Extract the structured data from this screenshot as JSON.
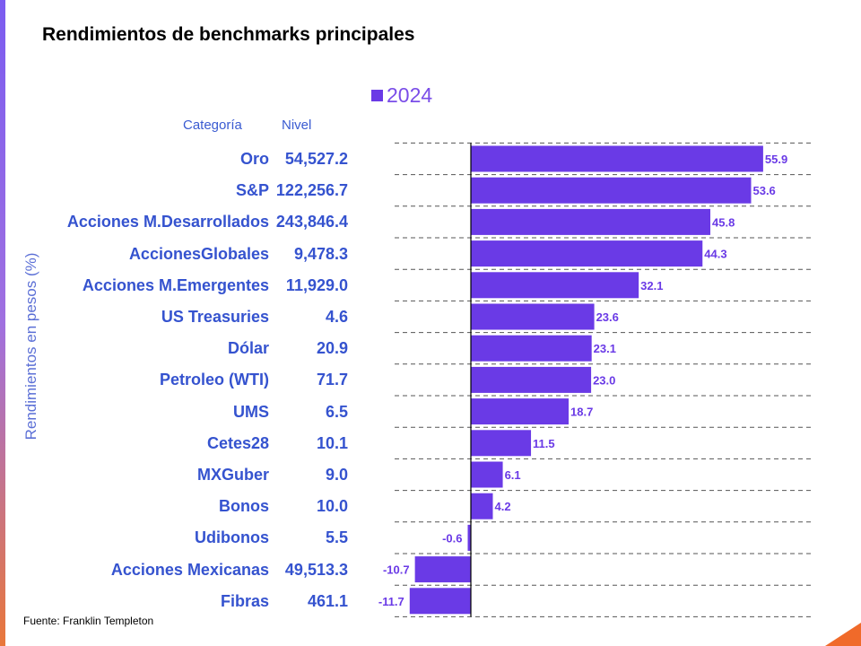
{
  "title": "Rendimientos de benchmarks principales",
  "source": "Fuente: Franklin Templeton",
  "table_headers": {
    "category": "Categoría",
    "level": "Nivel"
  },
  "chart_data": {
    "type": "bar",
    "orientation": "horizontal",
    "ylabel": "Rendimientos en pesos (%)",
    "grid": "horizontal dashed",
    "legend_placement": "top",
    "bar_color": "#6a3ae6",
    "label_color": "#6a3ae6",
    "categories": [
      "Oro",
      "S&P",
      "Acciones M.Desarrollados",
      "AccionesGlobales",
      "Acciones M.Emergentes",
      "US Treasuries",
      "Dólar",
      "Petroleo (WTI)",
      "UMS",
      "Cetes28",
      "MXGuber",
      "Bonos",
      "Udibonos",
      "Acciones Mexicanas",
      "Fibras"
    ],
    "levels": [
      "54,527.2",
      "122,256.7",
      "243,846.4",
      "9,478.3",
      "11,929.0",
      "4.6",
      "20.9",
      "71.7",
      "6.5",
      "10.1",
      "9.0",
      "10.0",
      "5.5",
      "49,513.3",
      "461.1"
    ],
    "series": [
      {
        "name": "2024",
        "values": [
          55.9,
          53.6,
          45.8,
          44.3,
          32.1,
          23.6,
          23.1,
          23.0,
          18.7,
          11.5,
          6.1,
          4.2,
          -0.6,
          -10.7,
          -11.7
        ],
        "labels": [
          "55.9",
          "53.6",
          "45.8",
          "44.3",
          "32.1",
          "23.6",
          "23.1",
          "23.0",
          "18.7",
          "11.5",
          "6.1",
          "4.2",
          "-0.6",
          "-10.7",
          "-11.7"
        ]
      }
    ]
  }
}
